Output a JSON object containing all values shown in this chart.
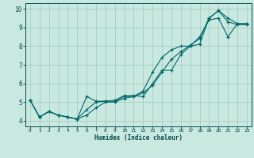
{
  "xlabel": "Humidex (Indice chaleur)",
  "bg_color": "#c8e8e0",
  "grid_color": "#a0c8c0",
  "line_color": "#006868",
  "xlim": [
    -0.5,
    23.5
  ],
  "ylim": [
    3.7,
    10.3
  ],
  "xticks": [
    0,
    1,
    2,
    3,
    4,
    5,
    6,
    7,
    8,
    9,
    10,
    11,
    12,
    13,
    14,
    15,
    16,
    17,
    18,
    19,
    20,
    21,
    22,
    23
  ],
  "yticks": [
    4,
    5,
    6,
    7,
    8,
    9,
    10
  ],
  "line1_x": [
    0,
    1,
    2,
    3,
    4,
    5,
    6,
    7,
    8,
    9,
    10,
    11,
    12,
    13,
    14,
    15,
    16,
    17,
    18,
    19,
    20,
    21,
    22,
    23
  ],
  "line1_y": [
    5.1,
    4.2,
    4.5,
    4.3,
    4.2,
    4.1,
    4.6,
    5.0,
    5.05,
    5.1,
    5.35,
    5.35,
    5.3,
    6.0,
    6.7,
    6.7,
    7.55,
    8.0,
    8.1,
    9.5,
    9.9,
    9.3,
    9.15,
    9.15
  ],
  "line2_x": [
    0,
    1,
    2,
    3,
    4,
    5,
    6,
    7,
    8,
    9,
    10,
    11,
    12,
    13,
    14,
    15,
    16,
    17,
    18,
    19,
    20,
    21,
    22,
    23
  ],
  "line2_y": [
    5.1,
    4.2,
    4.5,
    4.3,
    4.2,
    4.1,
    5.3,
    5.05,
    5.05,
    5.05,
    5.3,
    5.3,
    5.5,
    5.9,
    6.6,
    7.3,
    7.7,
    8.05,
    8.4,
    9.5,
    9.9,
    9.5,
    9.2,
    9.2
  ],
  "line3_x": [
    0,
    1,
    2,
    3,
    4,
    5,
    6,
    7,
    8,
    9,
    10,
    11,
    12,
    13,
    14,
    15,
    16,
    17,
    18,
    19,
    20,
    21,
    22,
    23
  ],
  "line3_y": [
    5.1,
    4.2,
    4.5,
    4.3,
    4.2,
    4.1,
    4.3,
    4.7,
    5.0,
    5.0,
    5.2,
    5.3,
    5.6,
    6.6,
    7.4,
    7.8,
    8.0,
    8.0,
    8.5,
    9.4,
    9.5,
    8.5,
    9.2,
    9.2
  ]
}
